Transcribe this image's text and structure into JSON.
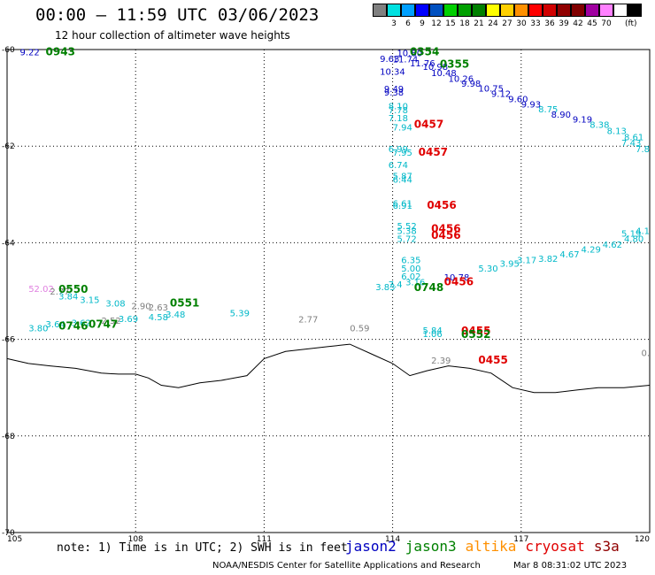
{
  "header": {
    "title": "00:00 – 11:59 UTC 03/06/2023",
    "subtitle": "12 hour collection of altimeter wave heights"
  },
  "colorbar": {
    "colors": [
      "#808080",
      "#00e0e0",
      "#00a0ff",
      "#0000ff",
      "#0050c0",
      "#00d000",
      "#00a000",
      "#008000",
      "#ffff00",
      "#ffd000",
      "#ff9000",
      "#ff0000",
      "#d00000",
      "#900000",
      "#800000",
      "#a000a0",
      "#ff80ff",
      "#ffffff",
      "#000000"
    ],
    "labels": [
      "3",
      "6",
      "9",
      "12",
      "15",
      "18",
      "21",
      "24",
      "27",
      "30",
      "33",
      "36",
      "39",
      "42",
      "45",
      "70"
    ],
    "unit": "(ft)"
  },
  "map": {
    "lon_min": 105,
    "lon_max": 120,
    "lat_top": -60,
    "lat_bottom": -70,
    "lon_ticks": [
      "105",
      "108",
      "111",
      "114",
      "117",
      "120"
    ],
    "lat_ticks": [
      "-60",
      "-62",
      "-64",
      "-66",
      "-68",
      "-70"
    ],
    "coast": [
      [
        105,
        -66.4
      ],
      [
        105.5,
        -66.5
      ],
      [
        106,
        -66.55
      ],
      [
        106.6,
        -66.6
      ],
      [
        107.2,
        -66.7
      ],
      [
        107.6,
        -66.72
      ],
      [
        108,
        -66.72
      ],
      [
        108.3,
        -66.8
      ],
      [
        108.6,
        -66.95
      ],
      [
        109,
        -67.0
      ],
      [
        109.5,
        -66.9
      ],
      [
        110,
        -66.85
      ],
      [
        110.6,
        -66.75
      ],
      [
        111,
        -66.4
      ],
      [
        111.5,
        -66.25
      ],
      [
        112,
        -66.2
      ],
      [
        112.5,
        -66.15
      ],
      [
        113.0,
        -66.1
      ],
      [
        113.5,
        -66.3
      ],
      [
        114.0,
        -66.5
      ],
      [
        114.4,
        -66.75
      ],
      [
        114.8,
        -66.65
      ],
      [
        115.3,
        -66.55
      ],
      [
        115.8,
        -66.6
      ],
      [
        116.3,
        -66.7
      ],
      [
        116.8,
        -67.0
      ],
      [
        117.3,
        -67.1
      ],
      [
        117.8,
        -67.1
      ],
      [
        118.3,
        -67.05
      ],
      [
        118.8,
        -67.0
      ],
      [
        119.4,
        -67.0
      ],
      [
        120,
        -66.95
      ]
    ],
    "observations": [
      {
        "lon": 105.3,
        "lat": -60.12,
        "v": "9.22",
        "c": "#0000c0"
      },
      {
        "lon": 114.1,
        "lat": -60.14,
        "v": "10.80",
        "c": "#0000c0"
      },
      {
        "lon": 113.7,
        "lat": -60.26,
        "v": "9.63",
        "c": "#0000c0"
      },
      {
        "lon": 114.0,
        "lat": -60.27,
        "v": "11.74",
        "c": "#0000c0"
      },
      {
        "lon": 114.4,
        "lat": -60.35,
        "v": "11.76",
        "c": "#0000c0"
      },
      {
        "lon": 114.7,
        "lat": -60.42,
        "v": "10.98",
        "c": "#0000c0"
      },
      {
        "lon": 113.7,
        "lat": -60.52,
        "v": "10.34",
        "c": "#0000c0"
      },
      {
        "lon": 114.9,
        "lat": -60.55,
        "v": "10.48",
        "c": "#0000c0"
      },
      {
        "lon": 115.3,
        "lat": -60.67,
        "v": "10.26",
        "c": "#0000c0"
      },
      {
        "lon": 115.6,
        "lat": -60.77,
        "v": "9.98",
        "c": "#0000c0"
      },
      {
        "lon": 116.0,
        "lat": -60.87,
        "v": "10.75",
        "c": "#0000c0"
      },
      {
        "lon": 113.8,
        "lat": -60.88,
        "v": "9.49",
        "c": "#0000c0"
      },
      {
        "lon": 113.8,
        "lat": -60.95,
        "v": "9.38",
        "c": "#0000c0"
      },
      {
        "lon": 116.3,
        "lat": -60.98,
        "v": "9.12",
        "c": "#0000c0"
      },
      {
        "lon": 116.7,
        "lat": -61.09,
        "v": "9.60",
        "c": "#0000c0"
      },
      {
        "lon": 117.0,
        "lat": -61.2,
        "v": "9.93",
        "c": "#0000c0"
      },
      {
        "lon": 113.9,
        "lat": -61.24,
        "v": "8.10",
        "c": "#00b8c8"
      },
      {
        "lon": 113.9,
        "lat": -61.32,
        "v": "7.78",
        "c": "#00b8c8"
      },
      {
        "lon": 117.4,
        "lat": -61.3,
        "v": "8.75",
        "c": "#00b8c8"
      },
      {
        "lon": 117.7,
        "lat": -61.41,
        "v": "8.90",
        "c": "#0000c0"
      },
      {
        "lon": 113.9,
        "lat": -61.48,
        "v": "7.18",
        "c": "#00b8c8"
      },
      {
        "lon": 118.2,
        "lat": -61.51,
        "v": "9.19",
        "c": "#0000c0"
      },
      {
        "lon": 114.0,
        "lat": -61.68,
        "v": "7.94",
        "c": "#00b8c8"
      },
      {
        "lon": 118.6,
        "lat": -61.62,
        "v": "8.38",
        "c": "#00b8c8"
      },
      {
        "lon": 119.0,
        "lat": -61.75,
        "v": "8.13",
        "c": "#00b8c8"
      },
      {
        "lon": 119.4,
        "lat": -61.88,
        "v": "8.61",
        "c": "#00b8c8"
      },
      {
        "lon": 119.8,
        "lat": -62.0,
        "v": "7.43",
        "c": "#00b8c8"
      },
      {
        "lon": 120.0,
        "lat": -62.12,
        "v": "7.8",
        "c": "#00b8c8"
      },
      {
        "lon": 113.9,
        "lat": -62.12,
        "v": "6.99",
        "c": "#00b8c8"
      },
      {
        "lon": 114.0,
        "lat": -62.2,
        "v": "7.95",
        "c": "#00b8c8"
      },
      {
        "lon": 113.9,
        "lat": -62.45,
        "v": "6.74",
        "c": "#00b8c8"
      },
      {
        "lon": 114.0,
        "lat": -62.68,
        "v": "5.87",
        "c": "#00b8c8"
      },
      {
        "lon": 114.0,
        "lat": -62.76,
        "v": "6.44",
        "c": "#00b8c8"
      },
      {
        "lon": 114.0,
        "lat": -63.25,
        "v": "6.61",
        "c": "#00b8c8"
      },
      {
        "lon": 114.0,
        "lat": -63.3,
        "v": "6.91",
        "c": "#00b8c8"
      },
      {
        "lon": 114.1,
        "lat": -63.72,
        "v": "5.52",
        "c": "#00b8c8"
      },
      {
        "lon": 114.1,
        "lat": -63.82,
        "v": "5.38",
        "c": "#00b8c8"
      },
      {
        "lon": 114.1,
        "lat": -63.98,
        "v": "5.72",
        "c": "#00b8c8"
      },
      {
        "lon": 114.2,
        "lat": -64.42,
        "v": "6.35",
        "c": "#00b8c8"
      },
      {
        "lon": 114.2,
        "lat": -64.6,
        "v": "5.00",
        "c": "#00b8c8"
      },
      {
        "lon": 114.2,
        "lat": -64.76,
        "v": "6.02",
        "c": "#00b8c8"
      },
      {
        "lon": 114.3,
        "lat": -64.88,
        "v": "3.16",
        "c": "#00b8c8"
      },
      {
        "lon": 113.6,
        "lat": -64.98,
        "v": "3.83",
        "c": "#00b8c8"
      },
      {
        "lon": 113.9,
        "lat": -64.93,
        "v": "7.4",
        "c": "#00b8c8"
      },
      {
        "lon": 115.2,
        "lat": -64.78,
        "v": "10.78",
        "c": "#0000c0"
      },
      {
        "lon": 116.0,
        "lat": -64.6,
        "v": "5.30",
        "c": "#00b8c8"
      },
      {
        "lon": 116.5,
        "lat": -64.5,
        "v": "3.95",
        "c": "#00b8c8"
      },
      {
        "lon": 116.9,
        "lat": -64.42,
        "v": "3.17",
        "c": "#00b8c8"
      },
      {
        "lon": 117.4,
        "lat": -64.4,
        "v": "3.82",
        "c": "#00b8c8"
      },
      {
        "lon": 117.9,
        "lat": -64.3,
        "v": "4.67",
        "c": "#00b8c8"
      },
      {
        "lon": 118.4,
        "lat": -64.2,
        "v": "4.29",
        "c": "#00b8c8"
      },
      {
        "lon": 118.9,
        "lat": -64.1,
        "v": "4.62",
        "c": "#00b8c8"
      },
      {
        "lon": 119.4,
        "lat": -63.98,
        "v": "4.80",
        "c": "#00b8c8"
      },
      {
        "lon": 119.8,
        "lat": -63.87,
        "v": "5.19",
        "c": "#00b8c8"
      },
      {
        "lon": 120.0,
        "lat": -63.82,
        "v": "4.1",
        "c": "#00b8c8"
      },
      {
        "lon": 105.5,
        "lat": -65.02,
        "v": "52.02",
        "c": "#e080e0"
      },
      {
        "lon": 106.0,
        "lat": -65.07,
        "v": "2.77",
        "c": "#808080"
      },
      {
        "lon": 106.2,
        "lat": -65.17,
        "v": "3.84",
        "c": "#00b8c8"
      },
      {
        "lon": 106.7,
        "lat": -65.25,
        "v": "3.15",
        "c": "#00b8c8"
      },
      {
        "lon": 107.3,
        "lat": -65.32,
        "v": "3.08",
        "c": "#00b8c8"
      },
      {
        "lon": 107.9,
        "lat": -65.38,
        "v": "2.90",
        "c": "#808080"
      },
      {
        "lon": 108.3,
        "lat": -65.4,
        "v": "2.63",
        "c": "#808080"
      },
      {
        "lon": 105.5,
        "lat": -65.83,
        "v": "3.80",
        "c": "#00b8c8"
      },
      {
        "lon": 105.9,
        "lat": -65.75,
        "v": "3.64",
        "c": "#00b8c8"
      },
      {
        "lon": 106.5,
        "lat": -65.72,
        "v": "3.62",
        "c": "#00b8c8"
      },
      {
        "lon": 107.2,
        "lat": -65.68,
        "v": "2.52",
        "c": "#808080"
      },
      {
        "lon": 107.6,
        "lat": -65.64,
        "v": "3.69",
        "c": "#00b8c8"
      },
      {
        "lon": 108.3,
        "lat": -65.6,
        "v": "4.58",
        "c": "#00b8c8"
      },
      {
        "lon": 108.7,
        "lat": -65.55,
        "v": "3.48",
        "c": "#00b8c8"
      },
      {
        "lon": 110.2,
        "lat": -65.52,
        "v": "5.39",
        "c": "#00b8c8"
      },
      {
        "lon": 111.8,
        "lat": -65.65,
        "v": "2.77",
        "c": "#808080"
      },
      {
        "lon": 113.0,
        "lat": -65.83,
        "v": "0.59",
        "c": "#808080"
      },
      {
        "lon": 114.7,
        "lat": -65.88,
        "v": "5.84",
        "c": "#00b8c8"
      },
      {
        "lon": 114.7,
        "lat": -65.95,
        "v": "1.06",
        "c": "#00b8c8"
      },
      {
        "lon": 114.9,
        "lat": -66.5,
        "v": "2.39",
        "c": "#808080"
      },
      {
        "lon": 120.0,
        "lat": -66.35,
        "v": "0.",
        "c": "#808080"
      }
    ],
    "time_labels": [
      {
        "lon": 105.9,
        "lat": -60.12,
        "v": "0943",
        "c": "#008000"
      },
      {
        "lon": 114.4,
        "lat": -60.12,
        "v": "0354",
        "c": "#008000"
      },
      {
        "lon": 115.1,
        "lat": -60.38,
        "v": "0355",
        "c": "#008000"
      },
      {
        "lon": 114.5,
        "lat": -61.62,
        "v": "0457",
        "c": "#e00000"
      },
      {
        "lon": 114.6,
        "lat": -62.2,
        "v": "0457",
        "c": "#e00000"
      },
      {
        "lon": 114.8,
        "lat": -63.3,
        "v": "0456",
        "c": "#e00000"
      },
      {
        "lon": 114.9,
        "lat": -63.78,
        "v": "0456",
        "c": "#e00000"
      },
      {
        "lon": 114.9,
        "lat": -63.92,
        "v": "0456",
        "c": "#e00000"
      },
      {
        "lon": 115.2,
        "lat": -64.88,
        "v": "0456",
        "c": "#e00000"
      },
      {
        "lon": 114.5,
        "lat": -65.0,
        "v": "0748",
        "c": "#008000"
      },
      {
        "lon": 106.2,
        "lat": -65.04,
        "v": "0550",
        "c": "#008000"
      },
      {
        "lon": 108.8,
        "lat": -65.32,
        "v": "0551",
        "c": "#008000"
      },
      {
        "lon": 106.2,
        "lat": -65.8,
        "v": "0746",
        "c": "#008000"
      },
      {
        "lon": 106.9,
        "lat": -65.76,
        "v": "0747",
        "c": "#008000"
      },
      {
        "lon": 115.6,
        "lat": -65.9,
        "v": "0455",
        "c": "#e00000"
      },
      {
        "lon": 115.6,
        "lat": -65.97,
        "v": "0552",
        "c": "#008000"
      },
      {
        "lon": 116.0,
        "lat": -66.5,
        "v": "0455",
        "c": "#e00000"
      }
    ]
  },
  "footer": {
    "note": "note: 1) Time is in UTC; 2) SWH is in feet",
    "satellites": [
      {
        "name": "jason2",
        "color": "#0000c0"
      },
      {
        "name": "jason3",
        "color": "#008000"
      },
      {
        "name": "altika",
        "color": "#ff9000"
      },
      {
        "name": "cryosat",
        "color": "#e00000"
      },
      {
        "name": "s3a",
        "color": "#900000"
      }
    ],
    "credit": "NOAA/NESDIS Center for Satellite Applications and Research",
    "timestamp": "Mar  8 08:31:02 UTC 2023"
  }
}
